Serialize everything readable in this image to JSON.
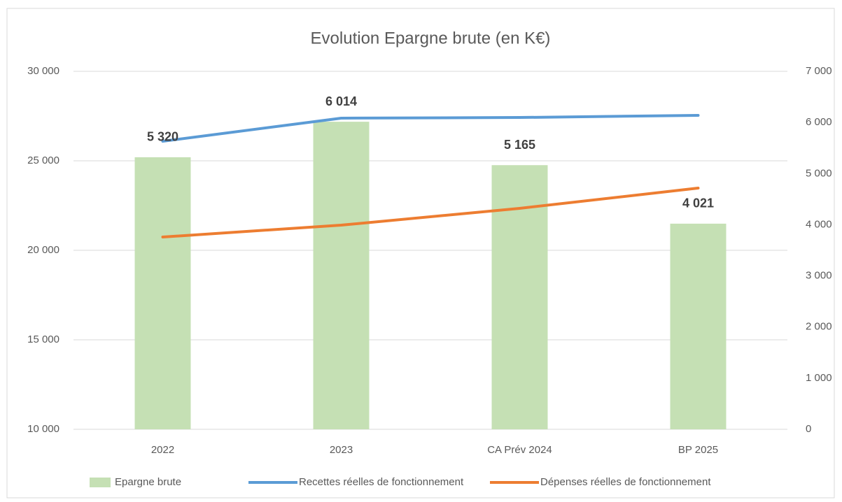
{
  "chart_data": {
    "type": "bar-line",
    "title": "Evolution  Epargne brute (en K€)",
    "categories": [
      "2022",
      "2023",
      "CA Prév 2024",
      "BP  2025"
    ],
    "series": [
      {
        "name": "Epargne brute",
        "type": "bar",
        "axis": "y2",
        "color": "#c5e0b4",
        "values": [
          5320,
          6014,
          5165,
          4021
        ],
        "value_labels": [
          "5 320",
          "6 014",
          "5 165",
          "4 021"
        ]
      },
      {
        "name": "Recettes réelles de fonctionnement",
        "type": "line",
        "axis": "y",
        "color": "#5b9bd5",
        "values": [
          26094,
          27383,
          27420,
          27540
        ]
      },
      {
        "name": "Dépenses réelles de fonctionnement",
        "type": "line",
        "axis": "y",
        "color": "#ed7d31",
        "values": [
          20742,
          21406,
          22344,
          23477
        ]
      }
    ],
    "ylim": [
      10000,
      30000
    ],
    "yticks": [
      {
        "value": 10000,
        "label": "10 000"
      },
      {
        "value": 15000,
        "label": "15 000"
      },
      {
        "value": 20000,
        "label": "20 000"
      },
      {
        "value": 25000,
        "label": "25 000"
      },
      {
        "value": 30000,
        "label": "30 000"
      }
    ],
    "y2lim": [
      0,
      7000
    ],
    "y2ticks": [
      0,
      {
        "value": 1000,
        "label": "1 000"
      },
      {
        "value": 2000,
        "label": "2 000"
      },
      {
        "value": 3000,
        "label": "3 000"
      },
      {
        "value": 4000,
        "label": "4 000"
      },
      {
        "value": 5000,
        "label": "5 000"
      },
      {
        "value": 6000,
        "label": "6 000"
      },
      {
        "value": 7000,
        "label": "7 000"
      }
    ],
    "grid": true,
    "legend": "bottom"
  }
}
